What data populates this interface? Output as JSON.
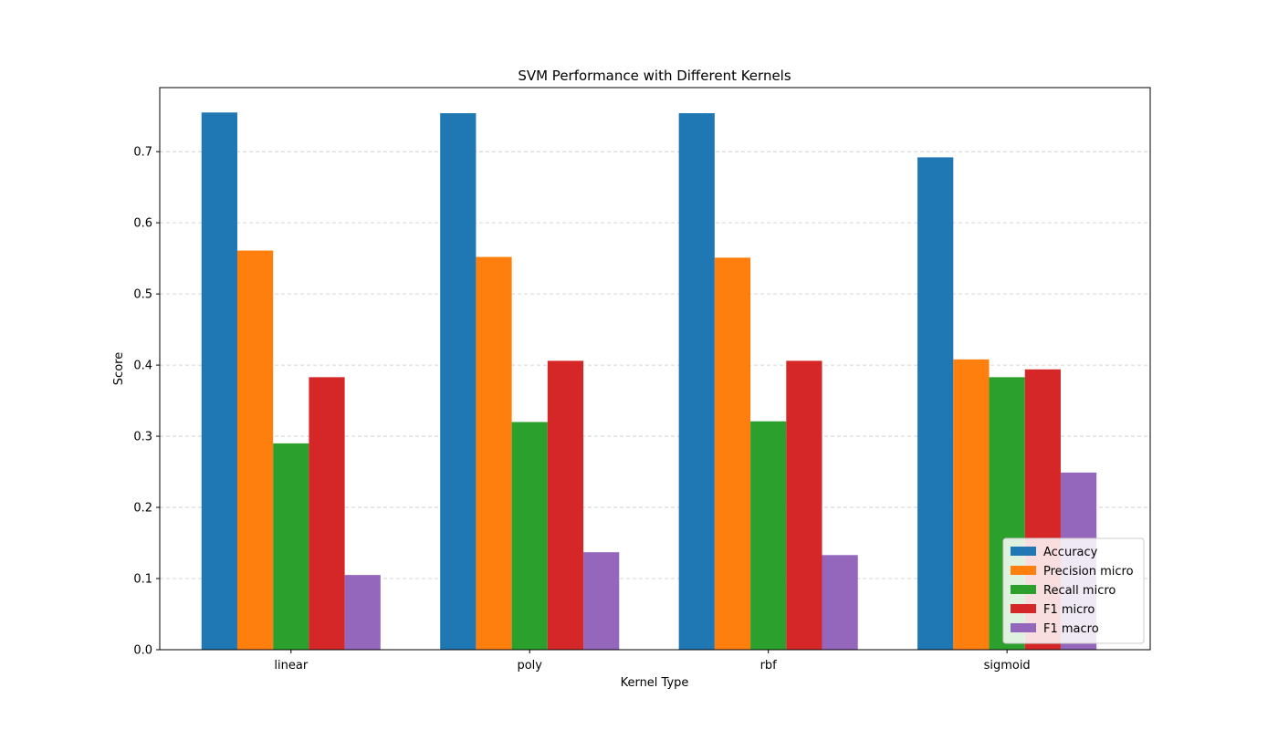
{
  "chart_data": {
    "type": "bar",
    "title": "SVM Performance with Different Kernels",
    "xlabel": "Kernel Type",
    "ylabel": "Score",
    "ylim": [
      0,
      0.79
    ],
    "yticks": [
      "0.0",
      "0.1",
      "0.2",
      "0.3",
      "0.4",
      "0.5",
      "0.6",
      "0.7"
    ],
    "grid": "y, dashed",
    "legend_position": "bottom-right",
    "categories": [
      "linear",
      "poly",
      "rbf",
      "sigmoid"
    ],
    "series": [
      {
        "name": "Accuracy",
        "color": "#1f77b4",
        "values": [
          0.755,
          0.754,
          0.754,
          0.692
        ]
      },
      {
        "name": "Precision micro",
        "color": "#ff7f0e",
        "values": [
          0.561,
          0.552,
          0.551,
          0.408
        ]
      },
      {
        "name": "Recall micro",
        "color": "#2ca02c",
        "values": [
          0.29,
          0.32,
          0.321,
          0.383
        ]
      },
      {
        "name": "F1 micro",
        "color": "#d62728",
        "values": [
          0.383,
          0.406,
          0.406,
          0.394
        ]
      },
      {
        "name": "F1 macro",
        "color": "#9467bd",
        "values": [
          0.105,
          0.137,
          0.133,
          0.249
        ]
      }
    ]
  }
}
